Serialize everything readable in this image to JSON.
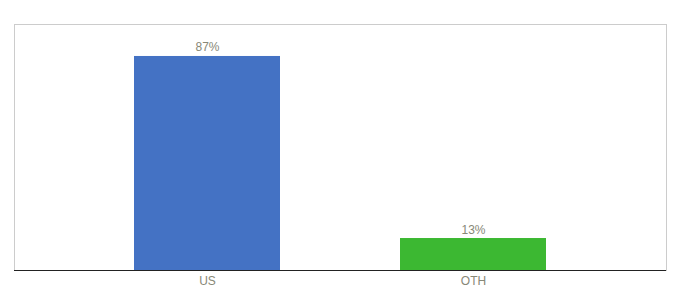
{
  "chart_data": {
    "type": "bar",
    "categories": [
      "US",
      "OTH"
    ],
    "values": [
      87,
      13
    ],
    "value_labels": [
      "87%",
      "13%"
    ],
    "colors": [
      "#4472c4",
      "#3cb832"
    ],
    "ylim": [
      0,
      100
    ],
    "tick_labels": "x",
    "data_labels": true
  }
}
